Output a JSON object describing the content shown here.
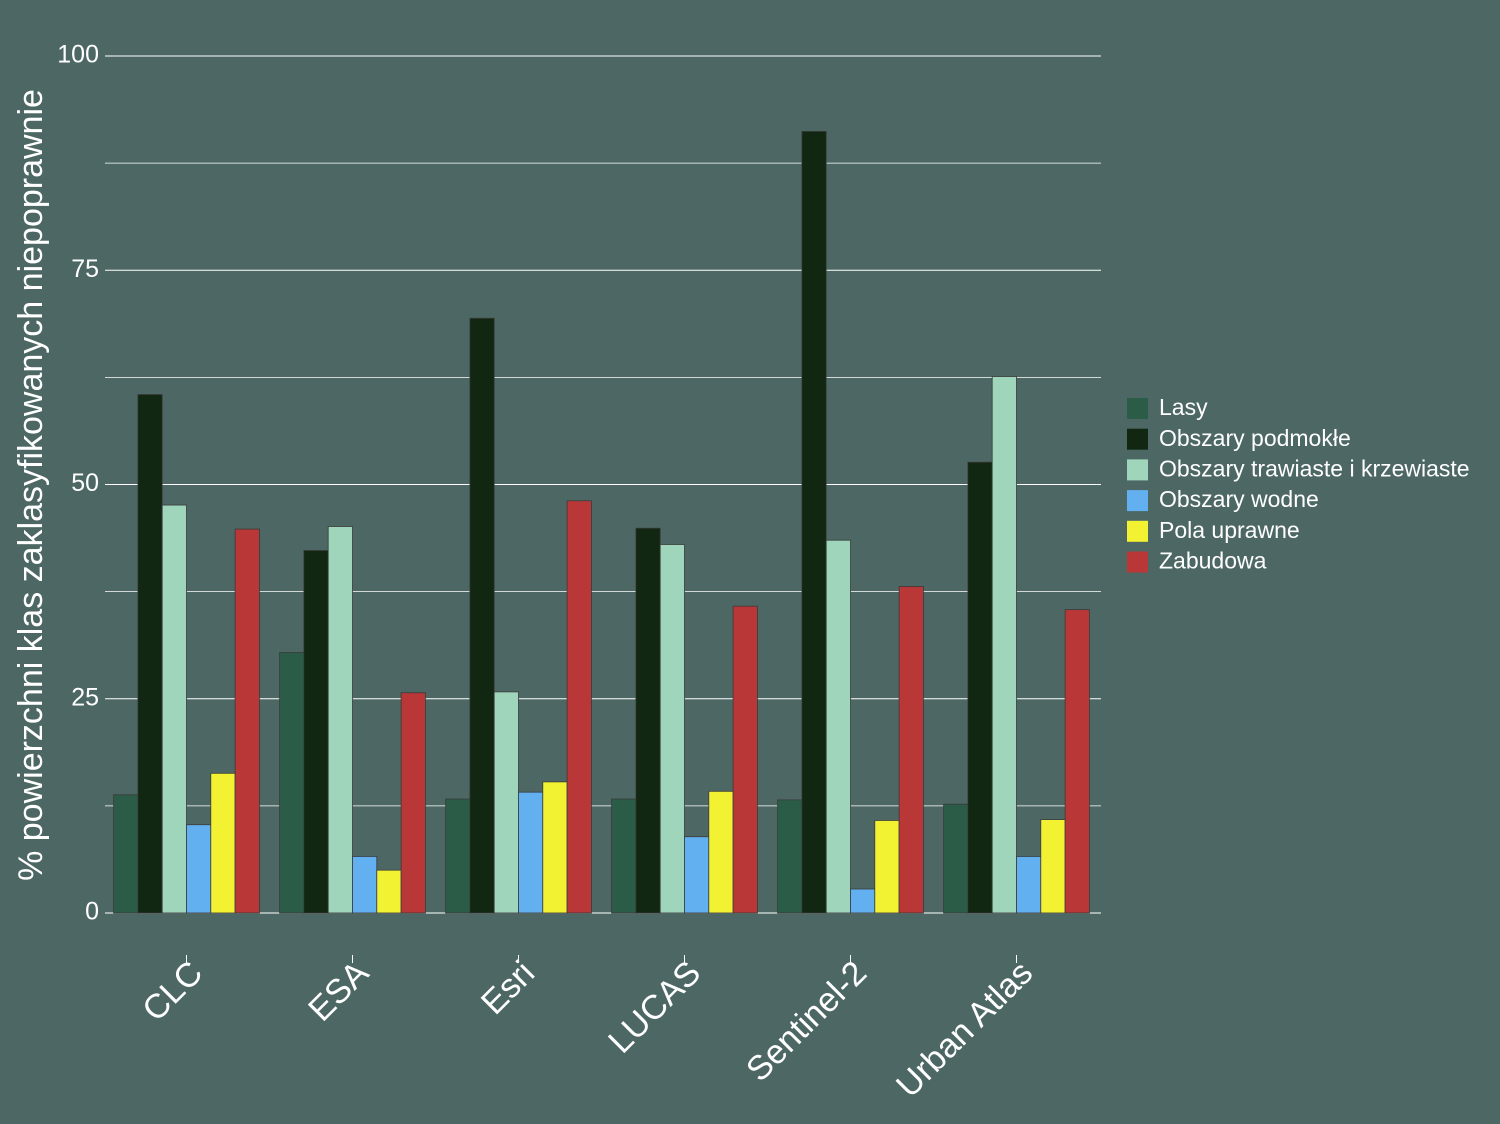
{
  "chart_data": {
    "type": "bar",
    "ylabel": "% powierzchni klas zaklasyfikowanych niepoprawnie",
    "xlabel": "",
    "ylim": [
      0,
      100
    ],
    "yticks": [
      0,
      25,
      50,
      75,
      100
    ],
    "ytick_labels": [
      "0",
      "25",
      "50",
      "75",
      "100"
    ],
    "grid": true,
    "legend_position": "right",
    "categories": [
      "CLC",
      "ESA",
      "Esri",
      "LUCAS",
      "Sentinel-2",
      "Urban Atlas"
    ],
    "series": [
      {
        "name": "Lasy",
        "color": "#2b5c47",
        "values": [
          13.8,
          30.4,
          13.3,
          13.3,
          13.2,
          12.7
        ]
      },
      {
        "name": "Obszary podmokłe",
        "color": "#112711",
        "values": [
          60.5,
          42.3,
          69.4,
          44.9,
          91.2,
          52.6
        ]
      },
      {
        "name": "Obszary trawiaste i krzewiaste",
        "color": "#9fd5bb",
        "values": [
          47.6,
          45.1,
          25.8,
          43.0,
          43.5,
          62.6
        ]
      },
      {
        "name": "Obszary wodne",
        "color": "#63b0f0",
        "values": [
          10.3,
          6.6,
          14.1,
          8.9,
          2.8,
          6.6
        ]
      },
      {
        "name": "Pola uprawne",
        "color": "#f3f232",
        "values": [
          16.3,
          5.0,
          15.3,
          14.2,
          10.8,
          10.9
        ]
      },
      {
        "name": "Zabudowa",
        "color": "#b93737",
        "values": [
          44.8,
          25.7,
          48.1,
          35.8,
          38.1,
          35.4
        ]
      }
    ]
  }
}
